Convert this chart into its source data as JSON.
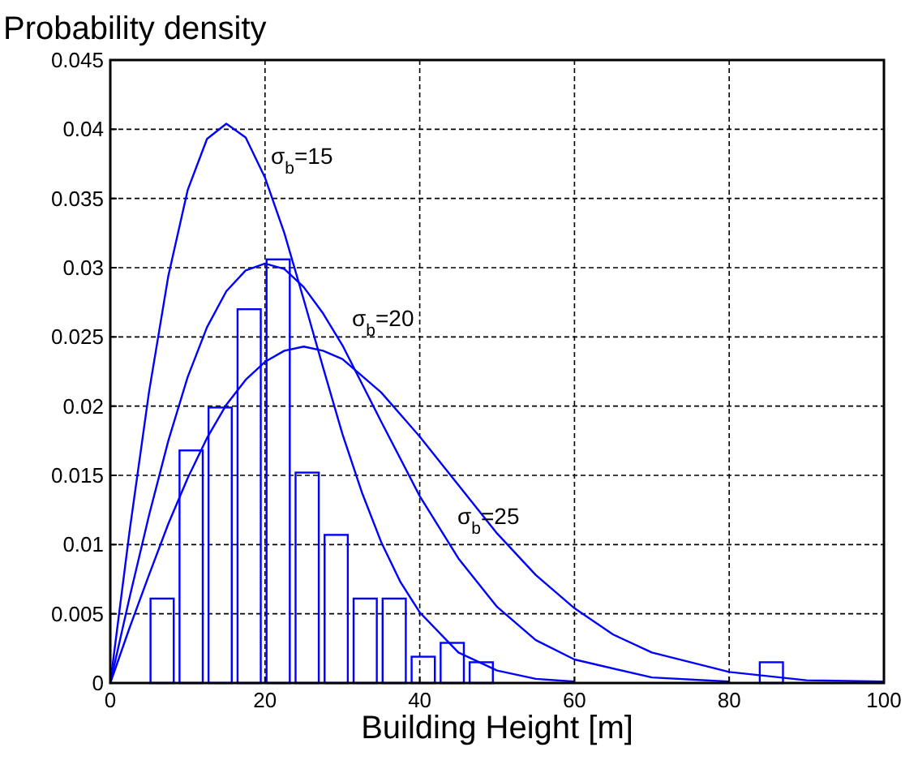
{
  "chart_data": {
    "type": "histogram",
    "ylabel": "Probability density",
    "xlabel": "Building Height [m]",
    "color": "#0000ff",
    "bins": [
      4.825,
      8.575,
      12.325,
      16.075,
      19.825,
      23.575,
      27.325,
      31.075,
      34.825,
      38.575,
      42.325,
      46.075,
      49.825,
      53.575,
      57.325,
      61.075,
      64.825,
      68.575,
      72.325,
      76.075,
      79.825,
      83.575,
      87.325
    ],
    "values": [
      0.0061,
      0.0168,
      0.0199,
      0.027,
      0.0306,
      0.0152,
      0.0107,
      0.0061,
      0.0061,
      0.0019,
      0.0029,
      0.0015,
      0,
      0,
      0,
      0,
      0,
      0,
      0,
      0,
      0,
      0.0015
    ],
    "series": [
      {
        "type": "line",
        "color": "#0000ff",
        "x": [
          0,
          2.5,
          5,
          7.5,
          10,
          12.5,
          15,
          17.5,
          20,
          22.5,
          25,
          27.5,
          30,
          32.5,
          35,
          37.5,
          40,
          45,
          50,
          55,
          60
        ],
        "values": [
          0,
          0.011,
          0.021,
          0.0294,
          0.0356,
          0.0393,
          0.0404,
          0.0394,
          0.0365,
          0.0325,
          0.0277,
          0.0228,
          0.018,
          0.0138,
          0.0102,
          0.0073,
          0.0051,
          0.0022,
          0.0009,
          0.0003,
          0.0001
        ]
      },
      {
        "type": "line",
        "color": "#0000ff",
        "x": [
          0,
          2.5,
          5,
          7.5,
          10,
          12.5,
          15,
          17.5,
          20,
          22.5,
          25,
          27.5,
          30,
          35,
          40,
          45,
          50,
          55,
          60,
          70,
          80
        ],
        "values": [
          0,
          0.0062,
          0.0121,
          0.0175,
          0.0221,
          0.0257,
          0.0283,
          0.0298,
          0.0303,
          0.0299,
          0.0286,
          0.0267,
          0.0244,
          0.0189,
          0.0135,
          0.009,
          0.0055,
          0.0031,
          0.0017,
          0.0004,
          0.0001
        ]
      },
      {
        "type": "line",
        "color": "#0000ff",
        "x": [
          0,
          2.5,
          5,
          7.5,
          10,
          12.5,
          15,
          17.5,
          20,
          22.5,
          25,
          27.5,
          30,
          35,
          40,
          45,
          50,
          55,
          60,
          65,
          70,
          80,
          90,
          100
        ],
        "values": [
          0,
          0.004,
          0.0078,
          0.0115,
          0.0148,
          0.0177,
          0.0201,
          0.0219,
          0.0232,
          0.024,
          0.0243,
          0.024,
          0.0234,
          0.021,
          0.0178,
          0.0143,
          0.0108,
          0.0078,
          0.0054,
          0.0035,
          0.0022,
          0.0008,
          0.0002,
          0.0001
        ]
      }
    ],
    "xlim": [
      0,
      100
    ],
    "xticks": [
      0,
      20,
      40,
      60,
      80,
      100
    ],
    "ylim": [
      0,
      0.045
    ],
    "yticks": [
      0,
      0.005,
      0.01,
      0.015,
      0.02,
      0.025,
      0.03,
      0.035,
      0.04,
      0.045
    ],
    "grid": true,
    "line_style": "solid",
    "annotations": [
      "σ$_{b}$=15",
      "σ$_{b}$=20",
      "σ$_{b}$=25"
    ]
  }
}
